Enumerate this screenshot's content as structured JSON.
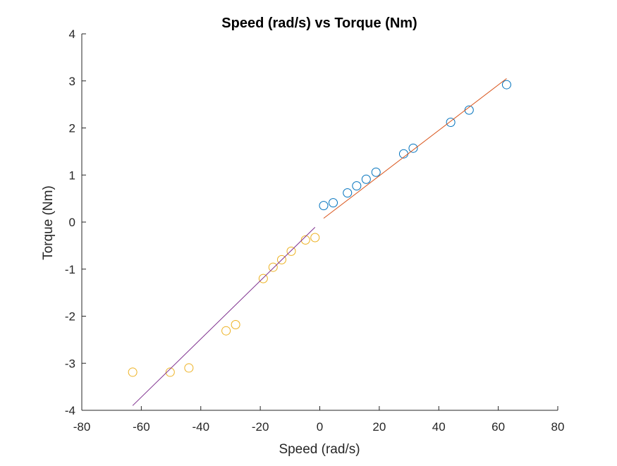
{
  "chart_data": {
    "type": "scatter",
    "title": "Speed (rad/s) vs Torque (Nm)",
    "xlabel": "Speed (rad/s)",
    "ylabel": "Torque (Nm)",
    "xlim": [
      -80,
      80
    ],
    "ylim": [
      -4,
      4
    ],
    "xticks": [
      -80,
      -60,
      -40,
      -20,
      0,
      20,
      40,
      60,
      80
    ],
    "yticks": [
      -4,
      -3,
      -2,
      -1,
      0,
      1,
      2,
      3,
      4
    ],
    "xtick_labels": [
      "-80",
      "-60",
      "-40",
      "-20",
      "0",
      "20",
      "40",
      "60",
      "80"
    ],
    "ytick_labels": [
      "-4",
      "-3",
      "-2",
      "-1",
      "0",
      "1",
      "2",
      "3",
      "4"
    ],
    "grid": false,
    "series": [
      {
        "kind": "points",
        "color": "#0072BD",
        "x": [
          1.3,
          4.5,
          9.3,
          12.4,
          15.6,
          18.9,
          28.2,
          31.4,
          44.0,
          50.2,
          62.8
        ],
        "y": [
          0.35,
          0.41,
          0.62,
          0.77,
          0.91,
          1.06,
          1.45,
          1.57,
          2.12,
          2.38,
          2.92
        ]
      },
      {
        "kind": "fit-line",
        "color": "#D95319",
        "x": [
          1.3,
          62.8
        ],
        "y": [
          0.08,
          3.05
        ]
      },
      {
        "kind": "points",
        "color": "#EDB120",
        "x": [
          -1.6,
          -4.8,
          -9.6,
          -12.8,
          -15.7,
          -19.0,
          -28.3,
          -31.5,
          -44.0,
          -50.3,
          -62.9
        ],
        "y": [
          -0.33,
          -0.38,
          -0.62,
          -0.8,
          -0.96,
          -1.2,
          -2.18,
          -2.31,
          -3.1,
          -3.19,
          -3.19
        ]
      },
      {
        "kind": "fit-line",
        "color": "#7E2F8E",
        "x": [
          -1.6,
          -62.9
        ],
        "y": [
          -0.11,
          -3.9
        ]
      }
    ]
  }
}
